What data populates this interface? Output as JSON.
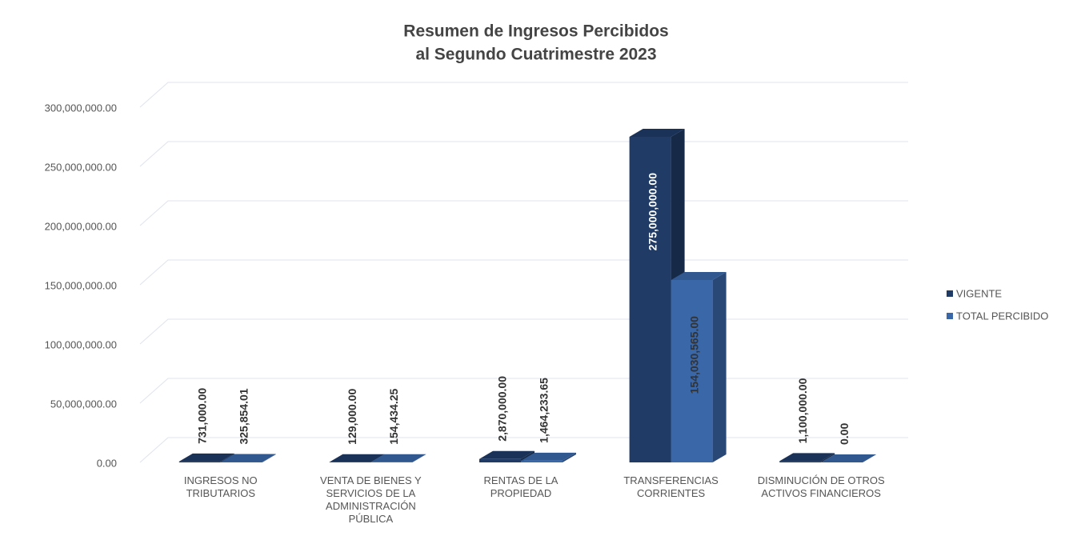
{
  "chart_data": {
    "type": "bar3d",
    "title": "Resumen de Ingresos Percibidos",
    "subtitle": "al Segundo Cuatrimestre 2023",
    "categories": [
      "INGRESOS NO TRIBUTARIOS",
      "VENTA DE BIENES Y SERVICIOS DE LA ADMINISTRACIÓN PÚBLICA",
      "RENTAS DE LA PROPIEDAD",
      "TRANSFERENCIAS CORRIENTES",
      "DISMINUCIÓN DE OTROS ACTIVOS FINANCIEROS"
    ],
    "series": [
      {
        "name": "VIGENTE",
        "color": "#1f3b66",
        "values": [
          731000,
          129000,
          2870000,
          275000000,
          1100000
        ],
        "value_labels": [
          "731,000.00",
          "129,000.00",
          "2,870,000.00",
          "275,000,000.00",
          "1,100,000.00"
        ]
      },
      {
        "name": "TOTAL PERCIBIDO",
        "color": "#3a67a8",
        "values": [
          325854.01,
          154434.25,
          1464233.65,
          154030565,
          0
        ],
        "value_labels": [
          "325,854.01",
          "154,434.25",
          "1,464,233.65",
          "154,030,565.00",
          "0.00"
        ]
      }
    ],
    "ylim": [
      0,
      300000000
    ],
    "yticks": [
      {
        "value": 0,
        "label": "0.00"
      },
      {
        "value": 50000000,
        "label": "50,000,000.00"
      },
      {
        "value": 100000000,
        "label": "100,000,000.00"
      },
      {
        "value": 150000000,
        "label": "150,000,000.00"
      },
      {
        "value": 200000000,
        "label": "200,000,000.00"
      },
      {
        "value": 250000000,
        "label": "250,000,000.00"
      },
      {
        "value": 300000000,
        "label": "300,000,000.00"
      }
    ],
    "grid": true,
    "legend": "right"
  }
}
